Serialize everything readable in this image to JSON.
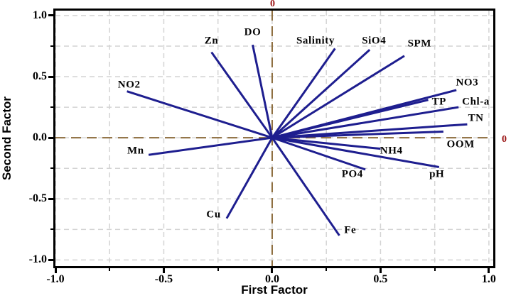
{
  "chart_data": {
    "type": "scatter",
    "subtype": "factor-loading-vector-plot",
    "title": "",
    "xlabel": "First Factor",
    "ylabel": "Second Factor",
    "xlim": [
      -1.0,
      1.02
    ],
    "ylim": [
      -1.05,
      1.04
    ],
    "x_ticks": [
      -1.0,
      -0.5,
      0.0,
      0.5,
      1.0
    ],
    "y_ticks": [
      -1.0,
      -0.5,
      0.0,
      0.5,
      1.0
    ],
    "x_minor_ticks": [
      -0.75,
      -0.25,
      0.25,
      0.75
    ],
    "y_minor_ticks": [
      -0.75,
      -0.25,
      0.25,
      0.75
    ],
    "x_tick_labels": [
      "-1.0",
      "-0.5",
      "0.0",
      "0.5",
      "1.0"
    ],
    "y_tick_labels": [
      "-1.0",
      "-0.5",
      "0.0",
      "0.5",
      "1.0"
    ],
    "grid": {
      "show": true,
      "interval": 0.25,
      "style": "dashed",
      "legend_position": "none"
    },
    "origin_reference_lines": {
      "x": 0,
      "y": 0,
      "style": "dashed",
      "end_label": "0"
    },
    "vectors": [
      {
        "name": "Zn",
        "x": -0.28,
        "y": 0.7,
        "label_x": -0.28,
        "label_y": 0.79
      },
      {
        "name": "DO",
        "x": -0.09,
        "y": 0.76,
        "label_x": -0.09,
        "label_y": 0.86
      },
      {
        "name": "Salinity",
        "x": 0.29,
        "y": 0.73,
        "label_x": 0.2,
        "label_y": 0.79
      },
      {
        "name": "SiO4",
        "x": 0.45,
        "y": 0.72,
        "label_x": 0.47,
        "label_y": 0.79
      },
      {
        "name": "SPM",
        "x": 0.61,
        "y": 0.67,
        "label_x": 0.68,
        "label_y": 0.77
      },
      {
        "name": "NO2",
        "x": -0.67,
        "y": 0.38,
        "label_x": -0.66,
        "label_y": 0.43
      },
      {
        "name": "NO3",
        "x": 0.85,
        "y": 0.39,
        "label_x": 0.9,
        "label_y": 0.45
      },
      {
        "name": "TP",
        "x": 0.72,
        "y": 0.31,
        "label_x": 0.77,
        "label_y": 0.29
      },
      {
        "name": "Chl-a",
        "x": 0.86,
        "y": 0.25,
        "label_x": 0.94,
        "label_y": 0.29
      },
      {
        "name": "TN",
        "x": 0.9,
        "y": 0.11,
        "label_x": 0.94,
        "label_y": 0.16
      },
      {
        "name": "OOM",
        "x": 0.79,
        "y": 0.05,
        "label_x": 0.87,
        "label_y": -0.06
      },
      {
        "name": "NH4",
        "x": 0.5,
        "y": -0.09,
        "label_x": 0.55,
        "label_y": -0.11
      },
      {
        "name": "Mn",
        "x": -0.57,
        "y": -0.14,
        "label_x": -0.63,
        "label_y": -0.11
      },
      {
        "name": "pH",
        "x": 0.77,
        "y": -0.24,
        "label_x": 0.76,
        "label_y": -0.3
      },
      {
        "name": "PO4",
        "x": 0.43,
        "y": -0.26,
        "label_x": 0.37,
        "label_y": -0.3
      },
      {
        "name": "Cu",
        "x": -0.21,
        "y": -0.66,
        "label_x": -0.27,
        "label_y": -0.63
      },
      {
        "name": "Fe",
        "x": 0.31,
        "y": -0.8,
        "label_x": 0.36,
        "label_y": -0.76
      }
    ]
  },
  "axis": {
    "x_title": "First Factor",
    "y_title": "Second Factor",
    "zero_label": "0"
  },
  "colors": {
    "vector": "#1e1e8f",
    "zero_line": "#8a6a3a",
    "zero_label": "#991111",
    "grid": "#d4d4d4",
    "axis": "#000000",
    "background": "#ffffff"
  }
}
